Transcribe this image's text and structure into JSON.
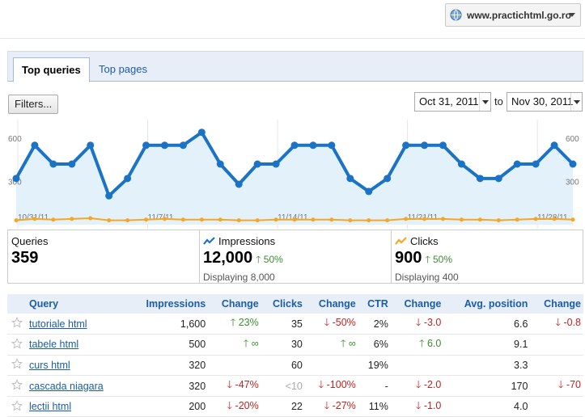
{
  "site": {
    "url": "www.practichtml.go.ro"
  },
  "tabs": [
    {
      "label": "Top queries"
    },
    {
      "label": "Top pages"
    }
  ],
  "filters_label": "Filters...",
  "dates": {
    "from": "Oct 31, 2011",
    "to_word": "to",
    "to": "Nov 30, 2011"
  },
  "chart_data": {
    "type": "line",
    "y_ticks": [
      "600",
      "300"
    ],
    "x_labels": [
      "10/31/11",
      "11/7/11",
      "11/14/11",
      "11/21/11",
      "11/28/11"
    ],
    "ylim": [
      0,
      700
    ],
    "series": [
      {
        "name": "Impressions",
        "color": "#1a73c5",
        "values": [
          320,
          550,
          420,
          420,
          550,
          200,
          320,
          550,
          550,
          550,
          640,
          420,
          280,
          420,
          420,
          550,
          550,
          550,
          320,
          230,
          320,
          550,
          550,
          550,
          420,
          320,
          320,
          420,
          420,
          550,
          420
        ]
      },
      {
        "name": "Clicks",
        "color": "#f5a623",
        "values": [
          30,
          40,
          35,
          40,
          45,
          30,
          30,
          35,
          40,
          35,
          35,
          35,
          30,
          30,
          35,
          35,
          35,
          35,
          30,
          30,
          30,
          40,
          40,
          40,
          35,
          35,
          30,
          35,
          40,
          40,
          35
        ]
      }
    ]
  },
  "stats": {
    "queries": {
      "label": "Queries",
      "value": "359"
    },
    "impressions": {
      "label": "Impressions",
      "value": "12,000",
      "change": "50%",
      "sub": "Displaying 8,000"
    },
    "clicks": {
      "label": "Clicks",
      "value": "900",
      "change": "50%",
      "sub": "Displaying 400"
    }
  },
  "table": {
    "headers": [
      "Query",
      "Impressions",
      "Change",
      "Clicks",
      "Change",
      "CTR",
      "Change",
      "Avg. position",
      "Change"
    ],
    "rows": [
      {
        "query": "tutoriale html",
        "impressions": "1,600",
        "imp_change": "23%",
        "imp_dir": "up",
        "clicks": "35",
        "clk_change": "-50%",
        "clk_dir": "down",
        "ctr": "2%",
        "ctr_change": "-3.0",
        "ctr_dir": "down",
        "pos": "6.6",
        "pos_change": "-0.8",
        "pos_dir": "down"
      },
      {
        "query": "tabele html",
        "impressions": "500",
        "imp_change": "∞",
        "imp_dir": "up",
        "clicks": "30",
        "clk_change": "∞",
        "clk_dir": "up",
        "ctr": "6%",
        "ctr_change": "6.0",
        "ctr_dir": "up",
        "pos": "9.1",
        "pos_change": "",
        "pos_dir": ""
      },
      {
        "query": "curs html",
        "impressions": "320",
        "imp_change": "",
        "imp_dir": "",
        "clicks": "60",
        "clk_change": "",
        "clk_dir": "",
        "ctr": "19%",
        "ctr_change": "",
        "ctr_dir": "",
        "pos": "3.3",
        "pos_change": "",
        "pos_dir": ""
      },
      {
        "query": "cascada niagara",
        "impressions": "320",
        "imp_change": "-47%",
        "imp_dir": "down",
        "clicks": "<10",
        "clk_change": "-100%",
        "clk_dir": "down",
        "ctr": "-",
        "ctr_change": "-2.0",
        "ctr_dir": "down",
        "pos": "170",
        "pos_change": "-70",
        "pos_dir": "down"
      },
      {
        "query": "lectii html",
        "impressions": "200",
        "imp_change": "-20%",
        "imp_dir": "down",
        "clicks": "22",
        "clk_change": "-27%",
        "clk_dir": "down",
        "ctr": "11%",
        "ctr_change": "-1.0",
        "ctr_dir": "down",
        "pos": "4.0",
        "pos_change": "",
        "pos_dir": ""
      }
    ]
  }
}
